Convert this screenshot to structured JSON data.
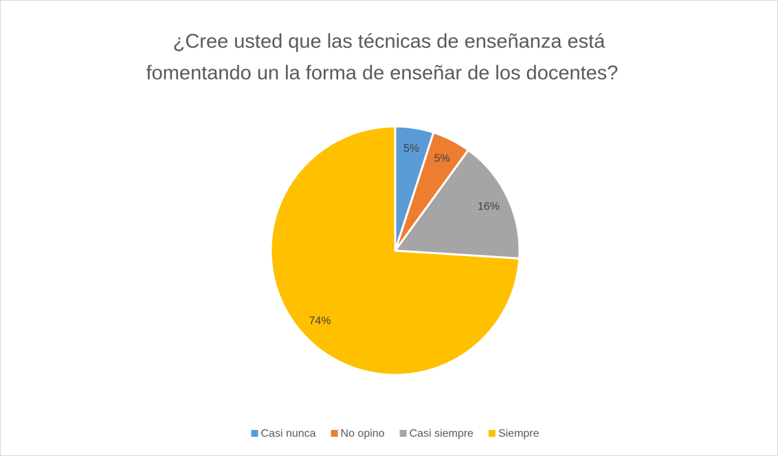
{
  "chart_data": {
    "type": "pie",
    "title": [
      "¿Cree usted que las técnicas  de enseñanza está",
      "fomentando un la forma de enseñar de los docentes?"
    ],
    "categories": [
      "Casi nunca",
      "No opino",
      "Casi siempre",
      "Siempre"
    ],
    "values": [
      5,
      5,
      16,
      74
    ],
    "value_labels": [
      "5%",
      "5%",
      "16%",
      "74%"
    ],
    "colors": [
      "#5b9bd5",
      "#ed7d31",
      "#a5a5a5",
      "#ffc000"
    ],
    "legend": "bottom"
  }
}
